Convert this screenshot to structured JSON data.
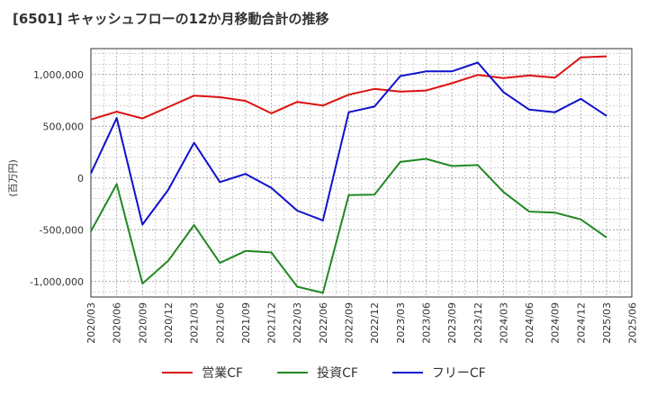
{
  "title": "[6501]  キャッシュフローの12か月移動合計の推移",
  "chart_data": {
    "type": "line",
    "title": "[6501]  キャッシュフローの12か月移動合計の推移",
    "ylabel": "(百万円)",
    "xlabel": "",
    "ylim": [
      -1150000,
      1250000
    ],
    "yticks": [
      1000000,
      500000,
      0,
      -500000,
      -1000000
    ],
    "ytick_labels": [
      "1,000,000",
      "500,000",
      "0",
      "-500,000",
      "-1,000,000"
    ],
    "xtick_labels": [
      "2020/03",
      "2020/06",
      "2020/09",
      "2020/12",
      "2021/03",
      "2021/06",
      "2021/09",
      "2021/12",
      "2022/03",
      "2022/06",
      "2022/09",
      "2022/12",
      "2023/03",
      "2023/06",
      "2023/09",
      "2023/12",
      "2024/03",
      "2024/06",
      "2024/09",
      "2024/12",
      "2025/03",
      "2025/06"
    ],
    "x": [
      "2020/03",
      "2020/06",
      "2020/09",
      "2020/12",
      "2021/03",
      "2021/06",
      "2021/09",
      "2021/12",
      "2022/03",
      "2022/06",
      "2022/09",
      "2022/12",
      "2023/03",
      "2023/06",
      "2023/09",
      "2023/12",
      "2024/03",
      "2024/06",
      "2024/09",
      "2024/12",
      "2025/03"
    ],
    "grid": true,
    "legend_position": "bottom",
    "series": [
      {
        "name": "営業CF",
        "color": "#dd1111",
        "values": [
          565000,
          640000,
          575000,
          685000,
          795000,
          780000,
          745000,
          625000,
          735000,
          700000,
          805000,
          860000,
          835000,
          845000,
          915000,
          995000,
          965000,
          990000,
          970000,
          1165000,
          1175000
        ]
      },
      {
        "name": "投資CF",
        "color": "#228822",
        "values": [
          -515000,
          -60000,
          -1020000,
          -800000,
          -455000,
          -820000,
          -705000,
          -720000,
          -1050000,
          -1110000,
          -165000,
          -160000,
          155000,
          185000,
          115000,
          125000,
          -135000,
          -325000,
          -335000,
          -400000,
          -575000
        ]
      },
      {
        "name": "フリーCF",
        "color": "#1111cc",
        "values": [
          45000,
          580000,
          -450000,
          -115000,
          340000,
          -40000,
          40000,
          -95000,
          -315000,
          -410000,
          635000,
          690000,
          985000,
          1030000,
          1030000,
          1115000,
          830000,
          660000,
          635000,
          765000,
          600000
        ]
      }
    ]
  }
}
